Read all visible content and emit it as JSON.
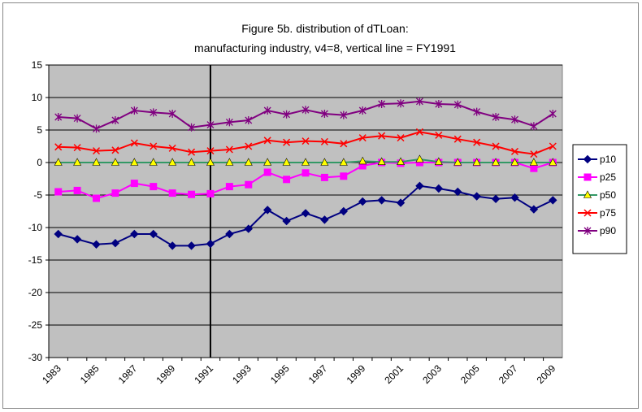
{
  "chart_data": {
    "type": "line",
    "title": [
      "Figure 5b. distribution of dTLoan:",
      "manufacturing industry, v4=8, vertical line = FY1991"
    ],
    "categories": [
      1983,
      null,
      1985,
      null,
      1987,
      null,
      1989,
      null,
      1991,
      null,
      1993,
      null,
      1995,
      null,
      1997,
      null,
      1999,
      null,
      2001,
      null,
      2003,
      null,
      2005,
      null,
      2007,
      null,
      2009
    ],
    "vline": 1991,
    "ylim": [
      -30,
      15
    ],
    "yticks": [
      -30,
      -25,
      -20,
      -15,
      -10,
      -5,
      0,
      5,
      10,
      15
    ],
    "grid": true,
    "plot_background": "#c0c0c0",
    "legend": "right",
    "series": [
      {
        "name": "p10",
        "color": "#000080",
        "marker": "diamond",
        "marker_fill": "#000080",
        "values": [
          -11,
          -11.8,
          -12.6,
          -12.4,
          -11,
          -11,
          -12.8,
          -12.8,
          -12.5,
          -11,
          -10.2,
          -7.3,
          -9,
          -7.8,
          -8.8,
          -7.5,
          -6,
          -5.8,
          -6.2,
          -3.6,
          -4,
          -4.5,
          -5.2,
          -5.6,
          -5.4,
          -7.2,
          -5.8
        ]
      },
      {
        "name": "p25",
        "color": "#ff00ff",
        "marker": "square",
        "marker_fill": "#ff00ff",
        "values": [
          -4.5,
          -4.3,
          -5.5,
          -4.7,
          -3.2,
          -3.7,
          -4.7,
          -4.9,
          -4.8,
          -3.7,
          -3.4,
          -1.5,
          -2.6,
          -1.6,
          -2.3,
          -2.1,
          -0.5,
          0,
          -0.1,
          0,
          0,
          0,
          0,
          0,
          0,
          -0.9,
          0
        ]
      },
      {
        "name": "p50",
        "color": "#339966",
        "marker": "triangle",
        "marker_fill": "#ffff00",
        "values": [
          0,
          0,
          0,
          0,
          0,
          0,
          0,
          0,
          0,
          0,
          0,
          0,
          0,
          0,
          0,
          0,
          0.2,
          0.1,
          0.1,
          0.5,
          0.1,
          0,
          0,
          0,
          0,
          0,
          0
        ]
      },
      {
        "name": "p75",
        "color": "#ff0000",
        "marker": "x",
        "marker_fill": "#ff0000",
        "values": [
          2.4,
          2.3,
          1.8,
          1.9,
          3.0,
          2.5,
          2.2,
          1.6,
          1.8,
          2.0,
          2.5,
          3.4,
          3.1,
          3.3,
          3.2,
          2.9,
          3.8,
          4.1,
          3.8,
          4.7,
          4.2,
          3.6,
          3.1,
          2.5,
          1.7,
          1.3,
          2.5
        ]
      },
      {
        "name": "p90",
        "color": "#800080",
        "marker": "star",
        "marker_fill": "#800080",
        "values": [
          7.0,
          6.8,
          5.2,
          6.5,
          8.0,
          7.7,
          7.5,
          5.4,
          5.8,
          6.2,
          6.5,
          8.0,
          7.4,
          8.1,
          7.5,
          7.3,
          8.0,
          9.0,
          9.1,
          9.4,
          9.0,
          8.9,
          7.8,
          7.0,
          6.6,
          5.6,
          7.5
        ]
      }
    ]
  }
}
